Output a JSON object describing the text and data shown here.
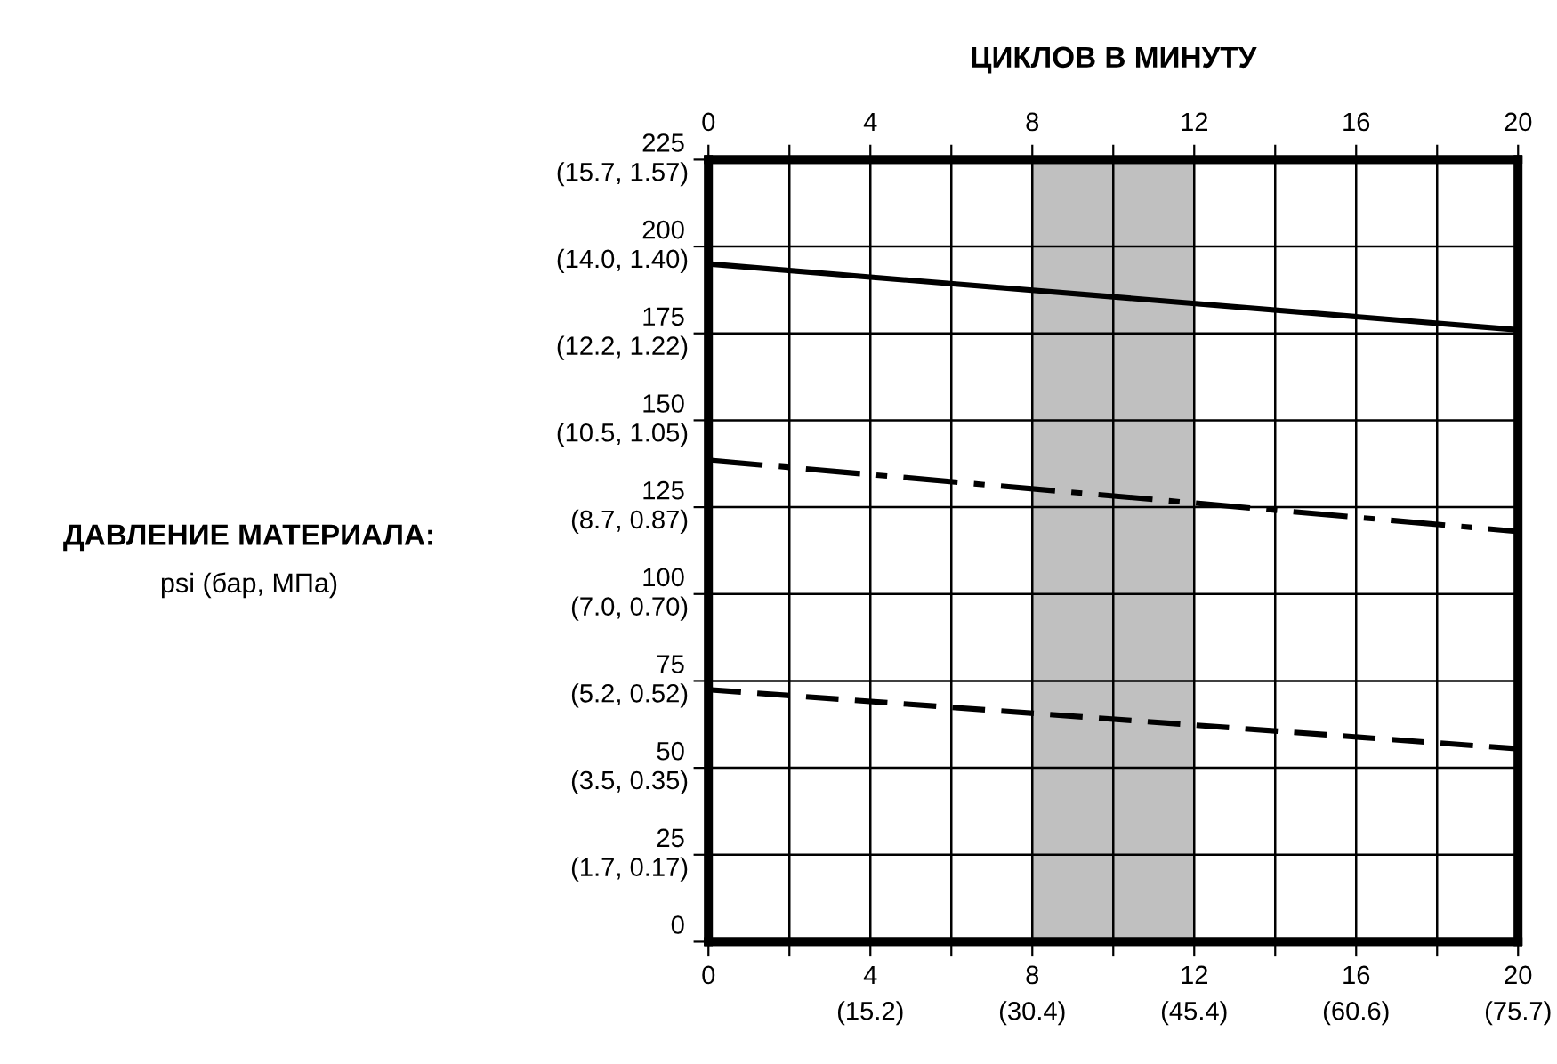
{
  "chart_data": {
    "type": "line",
    "x2label": "ЦИКЛОВ В МИНУТУ",
    "x": [
      0,
      20
    ],
    "series": [
      {
        "color": "#000000",
        "line_style": "solid",
        "values": [
          195,
          176
        ]
      },
      {
        "color": "#000000",
        "line_style": "dashdot",
        "values": [
          138.5,
          118
        ]
      },
      {
        "color": "#000000",
        "line_style": "dashed",
        "values": [
          72.5,
          55.5
        ]
      }
    ],
    "xlim": [
      0,
      20
    ],
    "ylim": [
      0,
      225
    ],
    "xticks": [
      0,
      {
        "value": 2,
        "label": null
      },
      4,
      {
        "value": 6,
        "label": null
      },
      8,
      {
        "value": 10,
        "label": null
      },
      12,
      {
        "value": 14,
        "label": null
      },
      16,
      {
        "value": 18,
        "label": null
      },
      20
    ],
    "x2lim": [
      0,
      20
    ],
    "x2ticks": [
      0,
      {
        "value": 2,
        "label": null
      },
      4,
      {
        "value": 6,
        "label": null
      },
      8,
      {
        "value": 10,
        "label": null
      },
      12,
      {
        "value": 14,
        "label": null
      },
      16,
      {
        "value": 18,
        "label": null
      },
      20
    ],
    "yticks": [
      0,
      25,
      50,
      75,
      100,
      125,
      150,
      175,
      200,
      225
    ],
    "annotations": [
      "ДАВЛЕНИЕ МАТЕРИАЛА:",
      "psi (бар, МПа)",
      "(15.2)",
      "(30.4)",
      "(45.4)",
      "(60.6)",
      "(75.7)",
      "(1.7, 0.17)",
      "(3.5, 0.35)",
      "(5.2, 0.52)",
      "(7.0, 0.70)",
      "(8.7, 0.87)",
      "(10.5, 1.05)",
      "(12.2, 1.22)",
      "(14.0, 1.40)",
      "(15.7, 1.57)"
    ],
    "bands": [
      {
        "axis": "x",
        "from": 8,
        "to": 12,
        "color": "#c0c0c0"
      }
    ],
    "grid": true
  }
}
